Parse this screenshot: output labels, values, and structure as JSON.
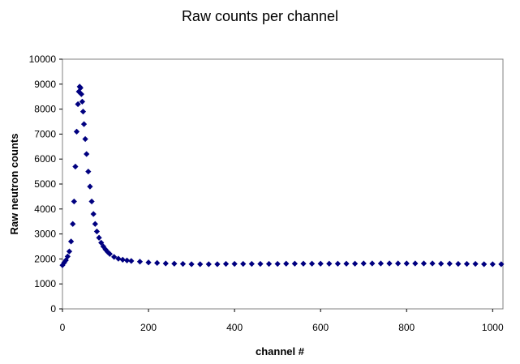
{
  "chart_data": {
    "type": "scatter",
    "title": "Raw counts per channel",
    "xlabel": "channel #",
    "ylabel": "Raw neutron counts",
    "xlim": [
      0,
      1024
    ],
    "ylim": [
      0,
      10000
    ],
    "xticks": [
      0,
      200,
      400,
      600,
      800,
      1000
    ],
    "yticks": [
      0,
      1000,
      2000,
      3000,
      4000,
      5000,
      6000,
      7000,
      8000,
      9000,
      10000
    ],
    "grid": false,
    "legend": "none",
    "marker": "diamond",
    "marker_color": "#000080",
    "series": [
      {
        "x": [
          0,
          4,
          8,
          12,
          16,
          20,
          24,
          27,
          30,
          33,
          36,
          38,
          40,
          42,
          44,
          46,
          48,
          50,
          53,
          56,
          60,
          64,
          68,
          72,
          76,
          80,
          85,
          90,
          95,
          100,
          105,
          110,
          120,
          130,
          140,
          150,
          160,
          180,
          200,
          220,
          240,
          260,
          280,
          300,
          320,
          340,
          360,
          380,
          400,
          420,
          440,
          460,
          480,
          500,
          520,
          540,
          560,
          580,
          600,
          620,
          640,
          660,
          680,
          700,
          720,
          740,
          760,
          780,
          800,
          820,
          840,
          860,
          880,
          900,
          920,
          940,
          960,
          980,
          1000,
          1020
        ],
        "y": [
          1750,
          1850,
          1950,
          2100,
          2300,
          2700,
          3400,
          4300,
          5700,
          7100,
          8200,
          8700,
          8900,
          8850,
          8600,
          8300,
          7900,
          7400,
          6800,
          6200,
          5500,
          4900,
          4300,
          3800,
          3400,
          3100,
          2850,
          2650,
          2500,
          2380,
          2280,
          2200,
          2080,
          2010,
          1970,
          1940,
          1920,
          1890,
          1860,
          1840,
          1820,
          1810,
          1800,
          1790,
          1790,
          1790,
          1790,
          1800,
          1800,
          1800,
          1800,
          1800,
          1800,
          1800,
          1810,
          1810,
          1810,
          1810,
          1810,
          1810,
          1810,
          1810,
          1810,
          1820,
          1820,
          1820,
          1820,
          1820,
          1820,
          1820,
          1820,
          1820,
          1810,
          1810,
          1800,
          1800,
          1800,
          1790,
          1790,
          1790
        ]
      }
    ]
  }
}
